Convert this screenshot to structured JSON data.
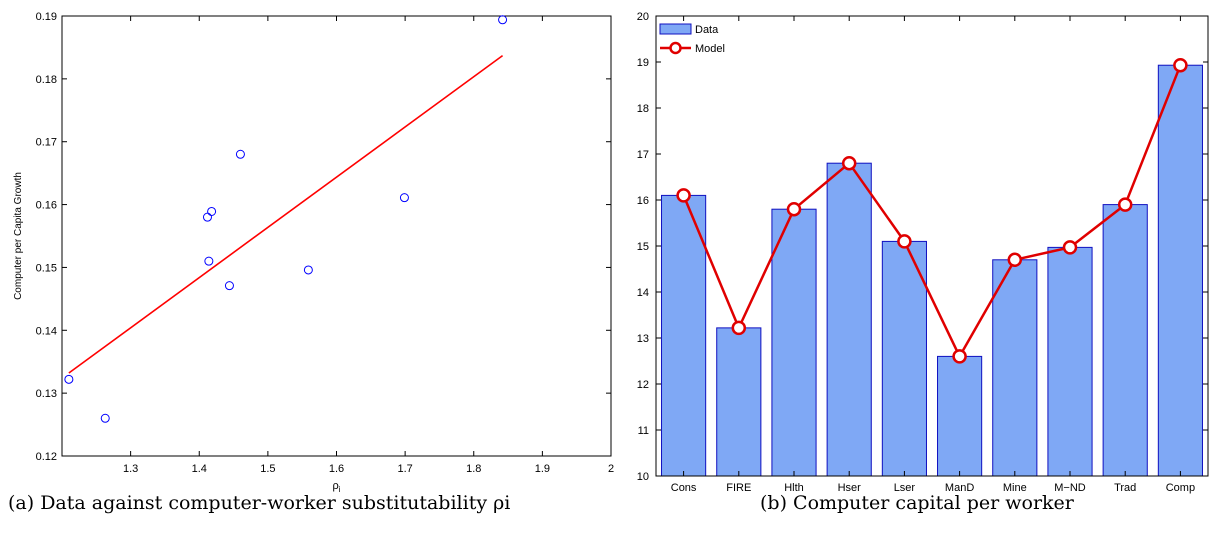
{
  "captions": {
    "a": "(a) Data against computer-worker substitutability ρi",
    "b": "(b) Computer capital per worker"
  },
  "colors": {
    "scatter_marker": "#0000ff",
    "fit_line": "#ff0000",
    "bar_fill": "#7fa8f5",
    "bar_edge": "#1010c0",
    "model_line": "#e00000"
  },
  "chart_data": [
    {
      "type": "scatter",
      "title": "",
      "xlabel": "ρi",
      "ylabel": "Computer per Capita Growth",
      "xlim": [
        1.2,
        2.0
      ],
      "ylim": [
        0.12,
        0.19
      ],
      "xticks": [
        1.3,
        1.4,
        1.5,
        1.6,
        1.7,
        1.8,
        1.9,
        2
      ],
      "yticks": [
        0.12,
        0.13,
        0.14,
        0.15,
        0.16,
        0.17,
        0.18,
        0.19
      ],
      "xtick_labels": [
        "1.3",
        "1.4",
        "1.5",
        "1.6",
        "1.7",
        "1.8",
        "1.9",
        "2"
      ],
      "ytick_labels": [
        "0.12",
        "0.13",
        "0.14",
        "0.15",
        "0.16",
        "0.17",
        "0.18",
        "0.19"
      ],
      "grid": false,
      "points": [
        {
          "x": 1.21,
          "y": 0.1322
        },
        {
          "x": 1.263,
          "y": 0.126
        },
        {
          "x": 1.412,
          "y": 0.158
        },
        {
          "x": 1.414,
          "y": 0.151
        },
        {
          "x": 1.418,
          "y": 0.1589
        },
        {
          "x": 1.444,
          "y": 0.1471
        },
        {
          "x": 1.46,
          "y": 0.168
        },
        {
          "x": 1.559,
          "y": 0.1496
        },
        {
          "x": 1.699,
          "y": 0.1611
        },
        {
          "x": 1.842,
          "y": 0.1894
        }
      ],
      "fit_line": {
        "x": [
          1.21,
          1.842
        ],
        "y": [
          0.1332,
          0.1837
        ]
      }
    },
    {
      "type": "bar",
      "title": "",
      "xlabel": "",
      "ylabel": "",
      "categories": [
        "Cons",
        "FIRE",
        "Hlth",
        "Hser",
        "Lser",
        "ManD",
        "Mine",
        "M−ND",
        "Trad",
        "Comp"
      ],
      "ylim": [
        10,
        20
      ],
      "yticks": [
        10,
        11,
        12,
        13,
        14,
        15,
        16,
        17,
        18,
        19,
        20
      ],
      "ytick_labels": [
        "10",
        "11",
        "12",
        "13",
        "14",
        "15",
        "16",
        "17",
        "18",
        "19",
        "20"
      ],
      "grid": false,
      "legend_position": "top-left",
      "series": [
        {
          "name": "Data",
          "kind": "bar",
          "values": [
            16.1,
            13.22,
            15.8,
            16.8,
            15.1,
            12.6,
            14.7,
            14.97,
            15.9,
            18.93
          ]
        },
        {
          "name": "Model",
          "kind": "line",
          "values": [
            16.1,
            13.22,
            15.8,
            16.8,
            15.1,
            12.6,
            14.7,
            14.97,
            15.9,
            18.93
          ]
        }
      ]
    }
  ]
}
